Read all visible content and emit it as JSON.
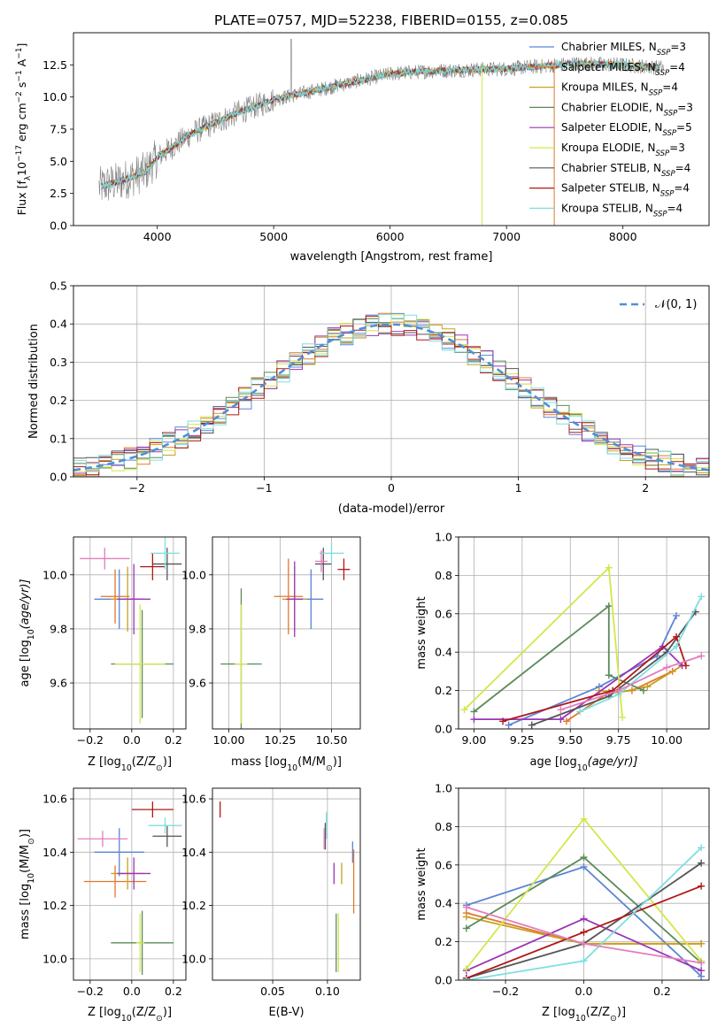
{
  "colors": {
    "grid": "#b0b0b0",
    "dashed_gaussian": "#4f8fd6",
    "series": [
      "#5b84d6",
      "#e0782b",
      "#c9a020",
      "#5a8a5a",
      "#9a35b8",
      "#d4e64a",
      "#555555",
      "#b01818",
      "#7fdde0",
      "#e37dbc"
    ]
  },
  "chart_data": [
    {
      "type": "line",
      "title": "PLATE=0757, MJD=52238, FIBERID=0155, z=0.085",
      "xlabel": "wavelength [Angstrom, rest frame]",
      "ylabel": "Flux [f_λ 10^-17 erg cm^-2 s^-1 A^-1]",
      "ylabel_parts": {
        "a": "Flux [",
        "b": "f",
        "c": "λ",
        "d": "10",
        "e": "−17",
        "f": " erg cm",
        "g": "−2",
        "h": " s",
        "i": "−1",
        "j": " A",
        "k": "−1",
        "l": "]"
      },
      "xlim": [
        3280,
        8740
      ],
      "ylim": [
        0,
        15
      ],
      "xticks": [
        4000,
        5000,
        6000,
        7000,
        8000
      ],
      "xtick_labels": [
        "4000",
        "5000",
        "6000",
        "7000",
        "8000"
      ],
      "yticks": [
        0,
        2.5,
        5,
        7.5,
        10,
        12.5
      ],
      "ytick_labels": [
        "0.0",
        "2.5",
        "5.0",
        "7.5",
        "10.0",
        "12.5"
      ],
      "legend_position": "top-right",
      "legend": [
        {
          "pre": "Chabrier MILES, N",
          "sub": "SSP",
          "post": "=3"
        },
        {
          "pre": "Salpeter MILES, N",
          "sub": "SSP",
          "post": "=4"
        },
        {
          "pre": "Kroupa MILES, N",
          "sub": "SSP",
          "post": "=4"
        },
        {
          "pre": "Chabrier ELODIE, N",
          "sub": "SSP",
          "post": "=3"
        },
        {
          "pre": "Salpeter ELODIE, N",
          "sub": "SSP",
          "post": "=5"
        },
        {
          "pre": "Kroupa ELODIE, N",
          "sub": "SSP",
          "post": "=3"
        },
        {
          "pre": "Chabrier STELIB, N",
          "sub": "SSP",
          "post": "=4"
        },
        {
          "pre": "Salpeter STELIB, N",
          "sub": "SSP",
          "post": "=4"
        },
        {
          "pre": "Kroupa STELIB, N",
          "sub": "SSP",
          "post": "=4"
        }
      ],
      "legend_colors": [
        "#5b84d6",
        "#e0782b",
        "#c9a020",
        "#5a8a5a",
        "#9a35b8",
        "#d4e64a",
        "#555555",
        "#b01818",
        "#7fdde0"
      ],
      "spectrum_anchor_x": [
        3500,
        3700,
        3900,
        4000,
        4300,
        4700,
        5000,
        5300,
        5700,
        6000,
        6300,
        6600,
        7000,
        7300,
        7600,
        8000,
        8300
      ],
      "spectrum_anchor_y": [
        3.0,
        3.5,
        4.2,
        5.3,
        7.2,
        8.8,
        9.8,
        10.4,
        11.2,
        11.8,
        12.0,
        12.1,
        12.2,
        12.4,
        12.6,
        12.5,
        12.3
      ]
    },
    {
      "type": "histogram",
      "xlabel": "(data-model)/error",
      "ylabel": "Normed distribution",
      "xlim": [
        -2.5,
        2.5
      ],
      "ylim": [
        0,
        0.5
      ],
      "xticks": [
        -2,
        -1,
        0,
        1,
        2
      ],
      "xtick_labels": [
        "−2",
        "−1",
        "0",
        "1",
        "2"
      ],
      "yticks": [
        0,
        0.1,
        0.2,
        0.3,
        0.4,
        0.5
      ],
      "ytick_labels": [
        "0.0",
        "0.1",
        "0.2",
        "0.3",
        "0.4",
        "0.5"
      ],
      "legend_position": "top-right",
      "legend_label": "𝒩(0, 1)",
      "bin_width": 0.1,
      "n_series": 9
    },
    {
      "type": "scatter",
      "xlabel": "Z [log10(Z/Z⊙)]",
      "xlabel_parts": {
        "a": "Z [log",
        "b": "10",
        "c": "(Z/Z",
        "d": "⊙",
        "e": ")]"
      },
      "ylabel": "age [log10(age/yr)]",
      "ylabel_parts": {
        "a": "age  [log",
        "b": "10",
        "c": "(age/yr)]"
      },
      "xlim": [
        -0.28,
        0.26
      ],
      "ylim": [
        9.43,
        10.14
      ],
      "xticks": [
        -0.2,
        0,
        0.2
      ],
      "xtick_labels": [
        "−0.2",
        "0.0",
        "0.2"
      ],
      "yticks": [
        9.6,
        9.8,
        10.0
      ],
      "ytick_labels": [
        "9.6",
        "9.8",
        "10.0"
      ],
      "points": [
        {
          "x": -0.06,
          "y": 9.91,
          "xerr": 0.12,
          "yerr": 0.11
        },
        {
          "x": -0.08,
          "y": 9.92,
          "xerr": 0.07,
          "yerr": 0.1
        },
        {
          "x": -0.02,
          "y": 9.91,
          "xerr": 0.08,
          "yerr": 0.12
        },
        {
          "x": 0.05,
          "y": 9.67,
          "xerr": 0.15,
          "yerr": 0.2
        },
        {
          "x": 0.01,
          "y": 9.91,
          "xerr": 0.08,
          "yerr": 0.13
        },
        {
          "x": 0.04,
          "y": 9.67,
          "xerr": 0.12,
          "yerr": 0.22
        },
        {
          "x": 0.17,
          "y": 10.04,
          "xerr": 0.07,
          "yerr": 0.06
        },
        {
          "x": 0.1,
          "y": 10.03,
          "xerr": 0.06,
          "yerr": 0.05
        },
        {
          "x": 0.16,
          "y": 10.08,
          "xerr": 0.07,
          "yerr": 0.06
        },
        {
          "x": -0.13,
          "y": 10.06,
          "xerr": 0.12,
          "yerr": 0.04
        }
      ]
    },
    {
      "type": "scatter",
      "xlabel": "mass [log10(M/M⊙)]",
      "xlabel_parts": {
        "a": "mass [log",
        "b": "10",
        "c": "(M/M",
        "d": "⊙",
        "e": ")]"
      },
      "xlim": [
        9.92,
        10.64
      ],
      "ylim": [
        9.43,
        10.14
      ],
      "xticks": [
        10.0,
        10.25,
        10.5
      ],
      "xtick_labels": [
        "10.00",
        "10.25",
        "10.50"
      ],
      "yticks": [
        9.6,
        9.8,
        10.0
      ],
      "ytick_labels": [
        "9.6",
        "9.8",
        "10.0"
      ],
      "points": [
        {
          "x": 10.4,
          "y": 9.91,
          "xerr": 0.06,
          "yerr": 0.11
        },
        {
          "x": 10.29,
          "y": 9.92,
          "xerr": 0.07,
          "yerr": 0.14
        },
        {
          "x": 10.32,
          "y": 9.91,
          "xerr": 0.06,
          "yerr": 0.12
        },
        {
          "x": 10.06,
          "y": 9.67,
          "xerr": 0.1,
          "yerr": 0.28
        },
        {
          "x": 10.32,
          "y": 9.91,
          "xerr": 0.04,
          "yerr": 0.14
        },
        {
          "x": 10.06,
          "y": 9.67,
          "xerr": 0.03,
          "yerr": 0.22
        },
        {
          "x": 10.46,
          "y": 10.04,
          "xerr": 0.04,
          "yerr": 0.06
        },
        {
          "x": 10.56,
          "y": 10.02,
          "xerr": 0.03,
          "yerr": 0.04
        },
        {
          "x": 10.5,
          "y": 10.08,
          "xerr": 0.06,
          "yerr": 0.04
        },
        {
          "x": 10.45,
          "y": 10.05,
          "xerr": 0.03,
          "yerr": 0.04
        }
      ]
    },
    {
      "type": "line",
      "xlabel": "age  [log10(age/yr)]",
      "xlabel_parts": {
        "a": "age  [log",
        "b": "10",
        "c": "(age/yr)]"
      },
      "ylabel": "mass weight",
      "xlim": [
        8.92,
        10.22
      ],
      "ylim": [
        0,
        1
      ],
      "xticks": [
        9.0,
        9.25,
        9.5,
        9.75,
        10.0
      ],
      "xtick_labels": [
        "9.00",
        "9.25",
        "9.50",
        "9.75",
        "10.00"
      ],
      "yticks": [
        0,
        0.2,
        0.4,
        0.6,
        0.8,
        1.0
      ],
      "ytick_labels": [
        "0.0",
        "0.2",
        "0.4",
        "0.6",
        "0.8",
        "1.0"
      ],
      "series": [
        {
          "x": [
            9.18,
            9.65,
            9.95,
            10.05
          ],
          "y": [
            0.02,
            0.22,
            0.38,
            0.59
          ]
        },
        {
          "x": [
            9.48,
            9.7,
            9.82,
            10.03
          ],
          "y": [
            0.04,
            0.19,
            0.2,
            0.3
          ]
        },
        {
          "x": [
            9.65,
            9.75,
            9.9,
            10.08
          ],
          "y": [
            0.2,
            0.19,
            0.22,
            0.33
          ]
        },
        {
          "x": [
            9.0,
            9.7,
            9.7,
            9.88
          ],
          "y": [
            0.09,
            0.64,
            0.28,
            0.2
          ]
        },
        {
          "x": [
            9.0,
            9.45,
            9.98,
            10.08
          ],
          "y": [
            0.05,
            0.05,
            0.43,
            0.33
          ]
        },
        {
          "x": [
            8.95,
            9.7,
            9.77
          ],
          "y": [
            0.1,
            0.84,
            0.06
          ]
        },
        {
          "x": [
            9.3,
            9.7,
            10.0,
            10.15
          ],
          "y": [
            0.02,
            0.17,
            0.4,
            0.61
          ]
        },
        {
          "x": [
            9.15,
            9.72,
            10.05,
            10.1
          ],
          "y": [
            0.04,
            0.2,
            0.48,
            0.33
          ]
        },
        {
          "x": [
            9.55,
            9.75,
            10.05,
            10.18
          ],
          "y": [
            0.09,
            0.18,
            0.43,
            0.69
          ]
        },
        {
          "x": [
            9.45,
            9.75,
            10.0,
            10.18
          ],
          "y": [
            0.1,
            0.2,
            0.32,
            0.38
          ]
        }
      ]
    },
    {
      "type": "scatter",
      "xlabel": "Z [log10(Z/Z⊙)]",
      "xlabel_parts": {
        "a": "Z [log",
        "b": "10",
        "c": "(Z/Z",
        "d": "⊙",
        "e": ")]"
      },
      "ylabel": "mass [log10(M/M⊙)]",
      "ylabel_parts": {
        "a": "mass [log",
        "b": "10",
        "c": "(M/M",
        "d": "⊙",
        "e": ")]"
      },
      "xlim": [
        -0.28,
        0.26
      ],
      "ylim": [
        9.92,
        10.64
      ],
      "xticks": [
        -0.2,
        0,
        0.2
      ],
      "xtick_labels": [
        "−0.2",
        "0.0",
        "0.2"
      ],
      "yticks": [
        10.0,
        10.2,
        10.4,
        10.6
      ],
      "ytick_labels": [
        "10.0",
        "10.2",
        "10.4",
        "10.6"
      ],
      "points": [
        {
          "x": -0.06,
          "y": 10.4,
          "xerr": 0.12,
          "yerr": 0.09
        },
        {
          "x": -0.08,
          "y": 10.29,
          "xerr": 0.15,
          "yerr": 0.06
        },
        {
          "x": -0.02,
          "y": 10.32,
          "xerr": 0.08,
          "yerr": 0.06
        },
        {
          "x": 0.05,
          "y": 10.06,
          "xerr": 0.15,
          "yerr": 0.12
        },
        {
          "x": 0.01,
          "y": 10.32,
          "xerr": 0.08,
          "yerr": 0.06
        },
        {
          "x": 0.04,
          "y": 10.06,
          "xerr": 0.02,
          "yerr": 0.11
        },
        {
          "x": 0.17,
          "y": 10.46,
          "xerr": 0.07,
          "yerr": 0.04
        },
        {
          "x": 0.1,
          "y": 10.56,
          "xerr": 0.1,
          "yerr": 0.03
        },
        {
          "x": 0.16,
          "y": 10.5,
          "xerr": 0.08,
          "yerr": 0.03
        },
        {
          "x": -0.14,
          "y": 10.45,
          "xerr": 0.12,
          "yerr": 0.03
        }
      ]
    },
    {
      "type": "scatter",
      "xlabel": "E(B-V)",
      "xlim": [
        -0.005,
        0.13
      ],
      "ylim": [
        9.92,
        10.64
      ],
      "xticks": [
        0.05,
        0.1
      ],
      "xtick_labels": [
        "0.05",
        "0.10"
      ],
      "yticks": [
        10.0,
        10.2,
        10.4,
        10.6
      ],
      "ytick_labels": [
        "10.0",
        "10.2",
        "10.4",
        "10.6"
      ],
      "points": [
        {
          "x": 0.123,
          "y": 10.4,
          "xerr": 0,
          "yerr": 0.04
        },
        {
          "x": 0.124,
          "y": 10.29,
          "xerr": 0,
          "yerr": 0.12
        },
        {
          "x": 0.113,
          "y": 10.32,
          "xerr": 0,
          "yerr": 0.04
        },
        {
          "x": 0.108,
          "y": 10.06,
          "xerr": 0,
          "yerr": 0.11
        },
        {
          "x": 0.106,
          "y": 10.32,
          "xerr": 0,
          "yerr": 0.04
        },
        {
          "x": 0.11,
          "y": 10.06,
          "xerr": 0,
          "yerr": 0.11
        },
        {
          "x": 0.098,
          "y": 10.46,
          "xerr": 0,
          "yerr": 0.05
        },
        {
          "x": 0.002,
          "y": 10.56,
          "xerr": 0,
          "yerr": 0.03
        },
        {
          "x": 0.099,
          "y": 10.5,
          "xerr": 0,
          "yerr": 0.05
        },
        {
          "x": 0.097,
          "y": 10.45,
          "xerr": 0,
          "yerr": 0.04
        }
      ]
    },
    {
      "type": "line",
      "xlabel": "Z [log10(Z/Z⊙)]",
      "xlabel_parts": {
        "a": "Z [log",
        "b": "10",
        "c": "(Z/Z",
        "d": "⊙",
        "e": ")]"
      },
      "ylabel": "mass weight",
      "xlim": [
        -0.32,
        0.32
      ],
      "ylim": [
        0,
        1
      ],
      "xticks": [
        -0.2,
        0,
        0.2
      ],
      "xtick_labels": [
        "−0.2",
        "0.0",
        "0.2"
      ],
      "yticks": [
        0,
        0.2,
        0.4,
        0.6,
        0.8,
        1.0
      ],
      "ytick_labels": [
        "0.0",
        "0.2",
        "0.4",
        "0.6",
        "0.8",
        "1.0"
      ],
      "series": [
        {
          "x": [
            -0.3,
            0,
            0.3
          ],
          "y": [
            0.39,
            0.59,
            0.02
          ]
        },
        {
          "x": [
            -0.3,
            0,
            0.3
          ],
          "y": [
            0.35,
            0.19,
            0.19
          ]
        },
        {
          "x": [
            -0.3,
            0,
            0.3
          ],
          "y": [
            0.33,
            0.19,
            0.19
          ]
        },
        {
          "x": [
            -0.3,
            0,
            0.3
          ],
          "y": [
            0.27,
            0.64,
            0.09
          ]
        },
        {
          "x": [
            -0.3,
            0,
            0.3
          ],
          "y": [
            0.05,
            0.32,
            0.05
          ]
        },
        {
          "x": [
            -0.3,
            0,
            0.3
          ],
          "y": [
            0.06,
            0.84,
            0.1
          ]
        },
        {
          "x": [
            -0.3,
            0,
            0.3
          ],
          "y": [
            0.01,
            0.19,
            0.61
          ]
        },
        {
          "x": [
            -0.3,
            0,
            0.3
          ],
          "y": [
            0.01,
            0.25,
            0.49
          ]
        },
        {
          "x": [
            -0.3,
            0,
            0.3
          ],
          "y": [
            0.0,
            0.1,
            0.69
          ]
        },
        {
          "x": [
            -0.3,
            0,
            0.3
          ],
          "y": [
            0.38,
            0.19,
            0.09
          ]
        }
      ]
    }
  ]
}
